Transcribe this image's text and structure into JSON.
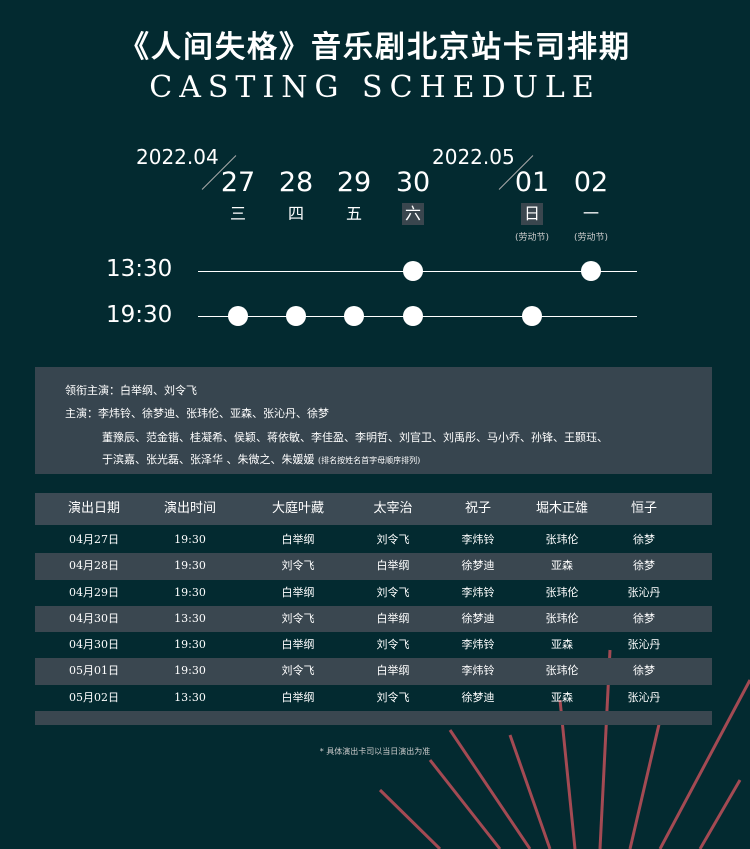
{
  "header": {
    "title": "《人间失格》音乐剧北京站卡司排期",
    "subtitle": "CASTING SCHEDULE"
  },
  "timeline": {
    "months": [
      "2022.04",
      "2022.05"
    ],
    "days": [
      {
        "day": "27",
        "weekday": "三",
        "highlight": false,
        "note": ""
      },
      {
        "day": "28",
        "weekday": "四",
        "highlight": false,
        "note": ""
      },
      {
        "day": "29",
        "weekday": "五",
        "highlight": false,
        "note": ""
      },
      {
        "day": "30",
        "weekday": "六",
        "highlight": true,
        "note": ""
      },
      {
        "day": "01",
        "weekday": "日",
        "highlight": true,
        "note": "(劳动节)"
      },
      {
        "day": "02",
        "weekday": "一",
        "highlight": false,
        "note": "(劳动节)"
      }
    ],
    "times": [
      {
        "label": "13:30",
        "shows": [
          "30",
          "02"
        ]
      },
      {
        "label": "19:30",
        "shows": [
          "27",
          "28",
          "29",
          "30",
          "01"
        ]
      }
    ]
  },
  "cast": {
    "lead": "领衔主演：白举纲、刘令飞",
    "main": "主演：李炜铃、徐梦迪、张玮伦、亚森、张沁丹、徐梦",
    "others1": "董豫辰、范金锴、桂凝希、侯颖、蒋依敏、李佳盈、李明哲、刘官卫、刘禹彤、马小乔、孙锋、王颢珏、",
    "others2": "于滨嘉、张光磊、张泽华 、朱微之、朱媛媛",
    "note": "(排名按姓名首字母顺序排列)"
  },
  "table": {
    "headers": [
      "演出日期",
      "演出时间",
      "大庭叶藏",
      "太宰治",
      "祝子",
      "堀木正雄",
      "恒子"
    ],
    "rows": [
      [
        "04月27日",
        "19:30",
        "白举纲",
        "刘令飞",
        "李炜铃",
        "张玮伦",
        "徐梦"
      ],
      [
        "04月28日",
        "19:30",
        "刘令飞",
        "白举纲",
        "徐梦迪",
        "亚森",
        "徐梦"
      ],
      [
        "04月29日",
        "19:30",
        "白举纲",
        "刘令飞",
        "李炜铃",
        "张玮伦",
        "张沁丹"
      ],
      [
        "04月30日",
        "13:30",
        "刘令飞",
        "白举纲",
        "徐梦迪",
        "张玮伦",
        "徐梦"
      ],
      [
        "04月30日",
        "19:30",
        "白举纲",
        "刘令飞",
        "李炜铃",
        "亚森",
        "张沁丹"
      ],
      [
        "05月01日",
        "19:30",
        "刘令飞",
        "白举纲",
        "李炜铃",
        "张玮伦",
        "徐梦"
      ],
      [
        "05月02日",
        "13:30",
        "白举纲",
        "刘令飞",
        "徐梦迪",
        "亚森",
        "张沁丹"
      ]
    ]
  },
  "footer": "* 具体演出卡司以当日演出为准",
  "colors": {
    "background": "#032a30",
    "panel": "#37454f",
    "accent_leaf": "#c0505a"
  }
}
